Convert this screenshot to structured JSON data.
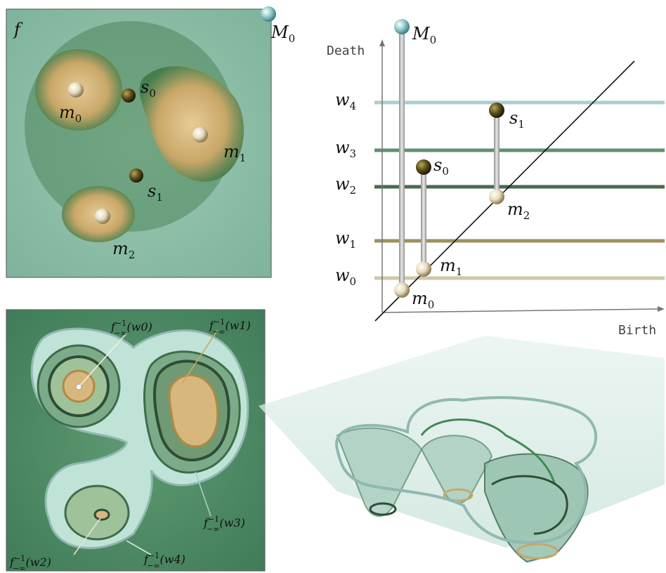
{
  "top_left_panel": {
    "function_label": "f",
    "critical_points": [
      {
        "label": "M",
        "sub": "0"
      },
      {
        "label": "m",
        "sub": "0"
      },
      {
        "label": "s",
        "sub": "0"
      },
      {
        "label": "m",
        "sub": "1"
      },
      {
        "label": "s",
        "sub": "1"
      },
      {
        "label": "m",
        "sub": "2"
      }
    ]
  },
  "diagram": {
    "x_axis_label": "Birth",
    "y_axis_label": "Death",
    "levels": [
      {
        "label": "w",
        "sub": "4",
        "color": "#a9cfcf"
      },
      {
        "label": "w",
        "sub": "3",
        "color": "#5f8f6f"
      },
      {
        "label": "w",
        "sub": "2",
        "color": "#4a6a4e"
      },
      {
        "label": "w",
        "sub": "1",
        "color": "#9c9262"
      },
      {
        "label": "w",
        "sub": "0",
        "color": "#cfc7a8"
      }
    ],
    "pairs": [
      {
        "birth": {
          "label": "m",
          "sub": "0"
        },
        "death": {
          "label": "M",
          "sub": "0"
        }
      },
      {
        "birth": {
          "label": "m",
          "sub": "1"
        },
        "death": {
          "label": "s",
          "sub": "0"
        }
      },
      {
        "birth": {
          "label": "m",
          "sub": "2"
        },
        "death": {
          "label": "s",
          "sub": "1"
        }
      }
    ]
  },
  "bottom_left_panel": {
    "preimage_labels": [
      {
        "base": "f",
        "sup": "−1",
        "sub": "−∞",
        "arg": "(w0)"
      },
      {
        "base": "f",
        "sup": "−1",
        "sub": "−∞",
        "arg": "(w1)"
      },
      {
        "base": "f",
        "sup": "−1",
        "sub": "−∞",
        "arg": "(w3)"
      },
      {
        "base": "f",
        "sup": "−1",
        "sub": "−∞",
        "arg": "(w2)"
      },
      {
        "base": "f",
        "sup": "−1",
        "sub": "−∞",
        "arg": "(w4)"
      }
    ]
  },
  "colors": {
    "dark_green": "#2f6b3e",
    "light_teal": "#bfe3d6",
    "sand": "#d8b77e",
    "saddle": "#5b4e1c",
    "max_sphere": "#8fc9c9"
  }
}
